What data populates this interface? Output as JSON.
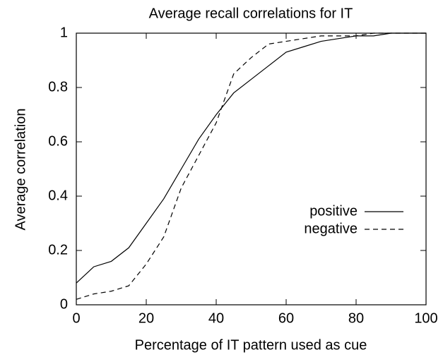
{
  "chart_data": {
    "type": "line",
    "title": "Average recall correlations for IT",
    "x_label": "Percentage of IT pattern used as cue",
    "y_label": "Average correlation",
    "x": [
      0,
      5,
      10,
      15,
      20,
      25,
      30,
      35,
      40,
      45,
      50,
      55,
      60,
      65,
      70,
      75,
      80,
      85,
      90,
      95,
      100
    ],
    "series": [
      {
        "name": "positive",
        "color": "#000000",
        "style": "solid",
        "values": [
          0.08,
          0.14,
          0.16,
          0.21,
          0.3,
          0.39,
          0.5,
          0.61,
          0.7,
          0.78,
          0.83,
          0.88,
          0.93,
          0.95,
          0.97,
          0.98,
          0.99,
          0.99,
          1.0,
          1.0,
          1.0
        ]
      },
      {
        "name": "negative",
        "color": "#000000",
        "style": "dashed",
        "values": [
          0.02,
          0.04,
          0.05,
          0.07,
          0.15,
          0.25,
          0.43,
          0.55,
          0.67,
          0.85,
          0.91,
          0.96,
          0.97,
          0.98,
          0.99,
          0.99,
          0.99,
          1.0,
          1.0,
          1.0,
          1.0
        ]
      }
    ],
    "xlim": [
      0,
      100
    ],
    "xticks": [
      0,
      20,
      40,
      60,
      80,
      100
    ],
    "ylim": [
      0,
      1
    ],
    "yticks": [
      0,
      0.2,
      0.4,
      0.6,
      0.8,
      1
    ],
    "grid": false,
    "legend": "center right"
  }
}
